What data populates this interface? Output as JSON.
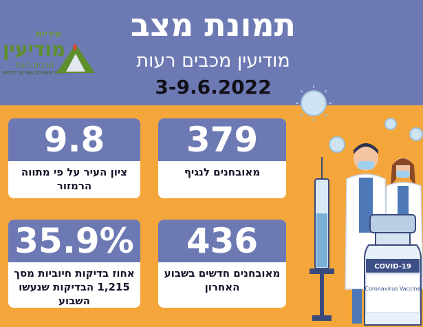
{
  "title": "תמונת מצב",
  "subtitle": "מודיעין מכבים רעות",
  "dates": "3-9.6.2022",
  "logo": {
    "line1": "עיריית",
    "line2": "מודיעין",
    "line3": "מכבים רעות",
    "line4": "MODI'IN MACCABIM REUT"
  },
  "cards": [
    {
      "value": "379",
      "label": "מאובחנים לנגיף"
    },
    {
      "value": "9.8",
      "label": "ציון העיר על פי מתווה הרמזור"
    },
    {
      "value": "436",
      "label": "מאובחנים חדשים בשבוע האחרון"
    },
    {
      "value": "35.9%",
      "label": "אחוז בדיקות חיוביות מסך 1,215 הבדיקות שנעשו השבוע"
    }
  ],
  "vaccine": {
    "cap_label": "COVID-19",
    "body_label": "Coronavirus Vaccine"
  },
  "colors": {
    "header": "#6d79b3",
    "background": "#f4a63a",
    "card": "#ffffff",
    "logo_green": "#5d8f2c"
  }
}
